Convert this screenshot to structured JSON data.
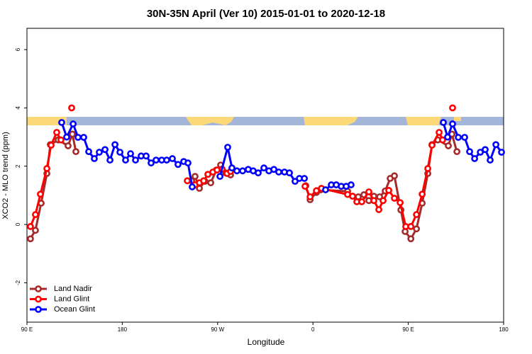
{
  "chart_data": {
    "type": "line",
    "title": "30N-35N April (Ver 10)   2015-01-01 to 2020-12-18",
    "x_label": "Longitude",
    "y_label": "XCO2 - MLO trend (ppm)",
    "xlim": [
      90,
      540
    ],
    "ylim": [
      -3.35,
      6.73
    ],
    "xticks": [
      90,
      180,
      {
        "value": 270,
        "label": "90 W"
      },
      {
        "value": 360,
        "label": "0"
      },
      {
        "value": 450,
        "label": "90 E"
      },
      {
        "value": 540,
        "label": "180"
      }
    ],
    "xticks_first_label": "90 E",
    "yticks": [
      -2,
      0,
      2,
      4,
      6
    ],
    "legend": "bottom-left",
    "series": [
      {
        "name": "Land Nadir",
        "color": "#a52a2a",
        "x": [
          93.3,
          98,
          103.4,
          108.8,
          112.1,
          119.5,
          128.8,
          132.9,
          136.2,
          null,
          245.4,
          248.7,
          252.8,
          258.1,
          263.5,
          268.8,
          272.8,
          277.5,
          282.2,
          null,
          353.2,
          357.3,
          363.3,
          367.3,
          392.7,
          397.4,
          402.8,
          408.1,
          412.8,
          417.5,
          422.9,
          428.2,
          432.9,
          436.9,
          443,
          447,
          452.4,
          457.7,
          463.1,
          468.4,
          472.4,
          477.8,
          487.8,
          491.2,
          495.9
        ],
        "values": [
          -0.49,
          -0.2,
          0.73,
          1.75,
          2.74,
          2.9,
          2.7,
          3.1,
          2.5,
          null,
          1.5,
          1.65,
          1.24,
          1.48,
          1.43,
          1.87,
          2.04,
          1.77,
          1.7,
          null,
          1.33,
          0.85,
          1.1,
          1.19,
          1.14,
          0.97,
          0.95,
          1.02,
          0.82,
          0.97,
          0.95,
          1.15,
          1.58,
          1.67,
          0.5,
          -0.24,
          -0.49,
          -0.15,
          0.73,
          1.75,
          2.74,
          2.9,
          2.7,
          3.1,
          2.5
        ]
      },
      {
        "name": "Land Glint",
        "color": "#ff0000",
        "x": [
          93.3,
          98,
          102.7,
          108.8,
          112.8,
          118.1,
          122.1,
          null,
          132.2,
          null,
          241.4,
          248.7,
          252.8,
          256.8,
          260.8,
          265.5,
          269.5,
          274.2,
          278.9,
          282.2,
          null,
          352.5,
          357.3,
          363.3,
          368,
          392.7,
          397.4,
          401.4,
          406.1,
          412.8,
          417.5,
          422.2,
          426.2,
          431.6,
          436.9,
          442.3,
          447.6,
          452.4,
          457.7,
          463.1,
          468.4,
          472.4,
          479.1,
          482.4,
          null,
          491.8
        ],
        "values": [
          -0.07,
          0.34,
          1.04,
          1.92,
          2.72,
          3.16,
          2.9,
          null,
          4.0,
          null,
          1.5,
          1.36,
          1.43,
          1.5,
          1.72,
          1.8,
          1.87,
          1.9,
          1.75,
          1.82,
          null,
          1.31,
          0.95,
          1.16,
          1.24,
          1.03,
          0.97,
          0.78,
          0.78,
          1.12,
          0.82,
          0.51,
          0.82,
          1.17,
          0.9,
          0.75,
          -0.07,
          -0.07,
          0.34,
          1.04,
          1.92,
          2.72,
          3.16,
          2.9,
          null,
          4.0
        ]
      },
      {
        "name": "Ocean Glint",
        "color": "#0000ff",
        "x": [
          122.8,
          127.5,
          133.6,
          138.2,
          143.6,
          148.3,
          153.6,
          158.3,
          163.7,
          168.4,
          173.1,
          177.8,
          183.1,
          187.8,
          192.5,
          197.8,
          202.5,
          207.2,
          211.9,
          217.2,
          221.9,
          227.3,
          232.6,
          238,
          242,
          246,
          null,
          272.2,
          279.5,
          283.5,
          288.2,
          293.6,
          298.9,
          303.6,
          308.3,
          313.7,
          318.4,
          323.1,
          327.7,
          333.1,
          337.8,
          343.1,
          347.2,
          351.9,
          null,
          371.9,
          377.3,
          382,
          386.7,
          391.4,
          396,
          null,
          483.1,
          487.1,
          491.8,
          497.2,
          503.2,
          507.9,
          512.6,
          518,
          522.6,
          527.3,
          532.7,
          538
        ],
        "values": [
          3.5,
          3.0,
          3.45,
          2.99,
          2.99,
          2.5,
          2.26,
          2.48,
          2.57,
          2.21,
          2.74,
          2.48,
          2.21,
          2.43,
          2.21,
          2.35,
          2.35,
          2.11,
          2.21,
          2.21,
          2.21,
          2.26,
          2.06,
          2.16,
          2.11,
          1.29,
          null,
          1.65,
          2.65,
          1.94,
          1.84,
          1.84,
          1.89,
          1.84,
          1.77,
          1.94,
          1.84,
          1.89,
          1.8,
          1.8,
          1.77,
          1.48,
          1.58,
          1.58,
          null,
          1.19,
          1.36,
          1.36,
          1.31,
          1.31,
          1.36,
          null,
          3.5,
          3.0,
          3.45,
          2.99,
          2.99,
          2.5,
          2.26,
          2.48,
          2.57,
          2.21,
          2.74,
          2.48
        ]
      }
    ]
  }
}
